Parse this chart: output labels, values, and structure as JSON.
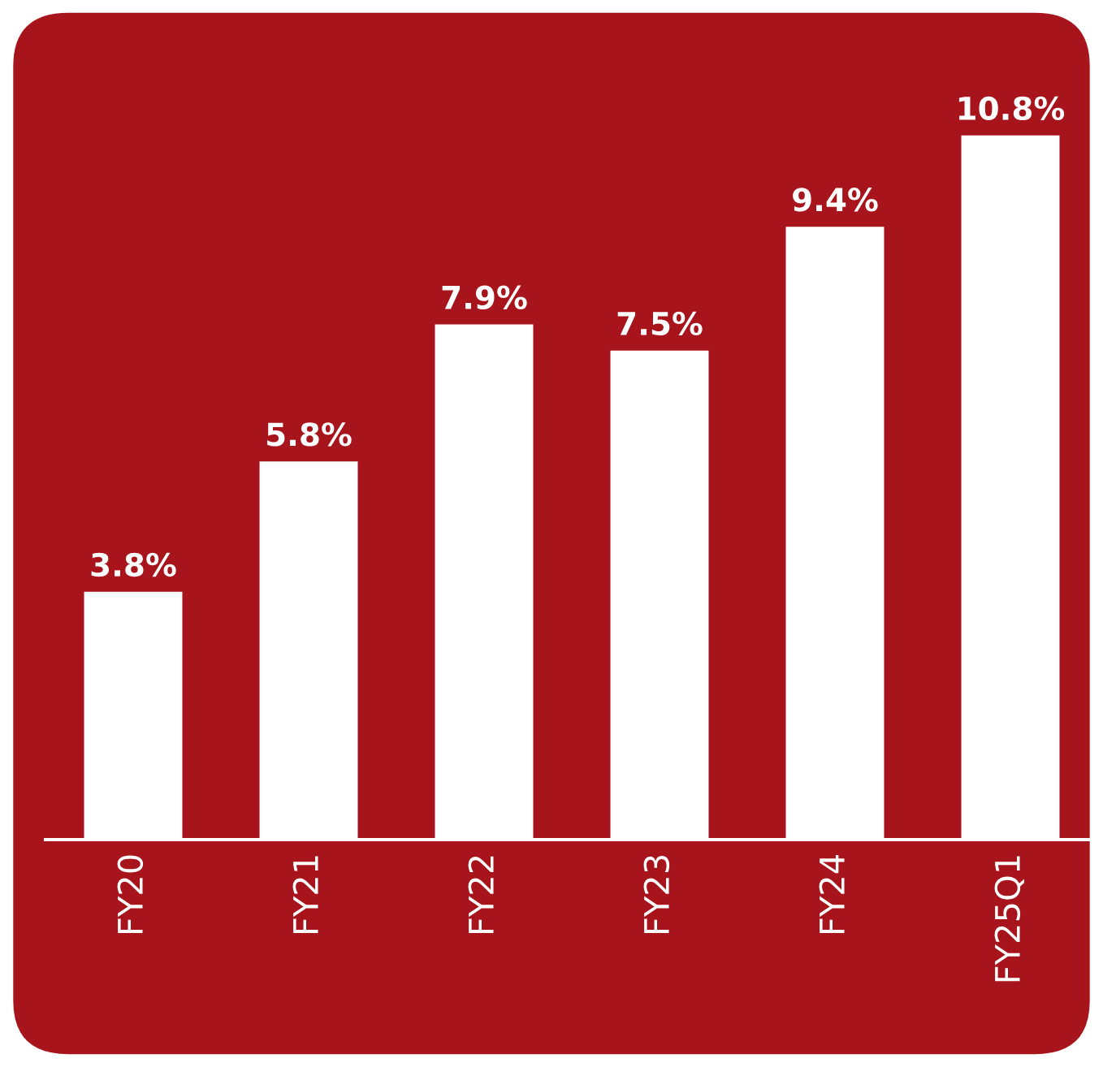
{
  "chart_data": {
    "type": "bar",
    "categories": [
      "FY20",
      "FY21",
      "FY22",
      "FY23",
      "FY24",
      "FY25Q1"
    ],
    "values": [
      3.8,
      5.8,
      7.9,
      7.5,
      9.4,
      10.8
    ],
    "value_labels": [
      "3.8%",
      "5.8%",
      "7.9%",
      "7.5%",
      "9.4%",
      "10.8%"
    ],
    "color": "#ffffff"
  }
}
